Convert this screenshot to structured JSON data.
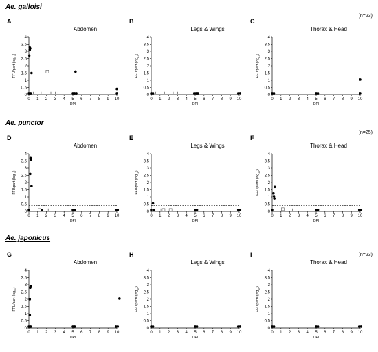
{
  "species": [
    {
      "name": "Ae. galloisi",
      "n": "(n=23)"
    },
    {
      "name": "Ae. punctor",
      "n": "(n=25)"
    },
    {
      "name": "Ae. japonicus",
      "n": "(n=23)"
    }
  ],
  "axes": {
    "xlabel": "DPI",
    "ylabel_parts": "FFU/parts (log",
    "ylabel_part": "FFU/part (log",
    "ylabel_sub": "10",
    "ylabel_close": ")",
    "xticks": [
      0,
      1,
      2,
      3,
      4,
      5,
      6,
      7,
      8,
      9,
      10
    ],
    "yticks": [
      "0",
      "0.5",
      "1",
      "1.5",
      "2",
      "2.5",
      "3",
      "3.5",
      "4"
    ]
  },
  "chart_data": [
    {
      "id": "A",
      "title": "Abdomen",
      "type": "scatter",
      "ylabel": "FFU/part (log10)",
      "xlabel": "DPI",
      "xlim": [
        0,
        10
      ],
      "ylim": [
        0,
        4
      ],
      "threshold": 0.4,
      "positive": [
        [
          0.1,
          3.3
        ],
        [
          0.15,
          3.2
        ],
        [
          0.1,
          3.1
        ],
        [
          0.05,
          2.7
        ],
        [
          0.3,
          1.5
        ],
        [
          5.3,
          1.6
        ],
        [
          10,
          0.4
        ]
      ],
      "negative": [
        [
          0,
          0.1
        ],
        [
          0.2,
          0.1
        ],
        [
          5,
          0.1
        ],
        [
          5.2,
          0.1
        ],
        [
          5.4,
          0.1
        ],
        [
          10,
          0.1
        ]
      ],
      "nd": [
        [
          2.1,
          1.6
        ]
      ],
      "ticks": [
        0.5,
        0.8,
        1.4,
        1.6,
        2.5,
        3,
        3.3
      ]
    },
    {
      "id": "B",
      "title": "Legs & Wings",
      "type": "scatter",
      "ylabel": "FFU/part (log10)",
      "xlabel": "DPI",
      "xlim": [
        0,
        10
      ],
      "ylim": [
        0,
        4
      ],
      "threshold": 0.4,
      "positive": [],
      "negative": [
        [
          0,
          0.1
        ],
        [
          0.2,
          0.1
        ],
        [
          4.9,
          0.1
        ],
        [
          5.1,
          0.1
        ],
        [
          5.3,
          0.1
        ],
        [
          9.9,
          0.1
        ],
        [
          10.1,
          0.1
        ]
      ],
      "nd": [],
      "ticks": [
        0.5,
        0.9,
        1.5,
        2.5,
        3
      ]
    },
    {
      "id": "C",
      "title": "Thorax & Head",
      "type": "scatter",
      "ylabel": "FFU/part (log10)",
      "xlabel": "DPI",
      "xlim": [
        0,
        10
      ],
      "ylim": [
        0,
        4
      ],
      "threshold": 0.4,
      "positive": [
        [
          10,
          1.05
        ]
      ],
      "negative": [
        [
          0,
          0.1
        ],
        [
          0.2,
          0.1
        ],
        [
          5,
          0.1
        ],
        [
          5.2,
          0.1
        ],
        [
          10,
          0.1
        ]
      ],
      "nd": [],
      "ticks": []
    },
    {
      "id": "D",
      "title": "Abdomen",
      "type": "scatter",
      "ylabel": "FFU/part (log10)",
      "xlabel": "DPI",
      "xlim": [
        0,
        10
      ],
      "ylim": [
        0,
        4
      ],
      "threshold": 0.4,
      "positive": [
        [
          0.2,
          3.7
        ],
        [
          0.25,
          3.6
        ],
        [
          0.15,
          2.6
        ],
        [
          0.3,
          1.75
        ]
      ],
      "negative": [
        [
          0,
          0.1
        ],
        [
          1.5,
          0.1
        ],
        [
          5,
          0.1
        ],
        [
          5.2,
          0.1
        ],
        [
          9.9,
          0.1
        ],
        [
          10.1,
          0.1
        ]
      ],
      "nd": [
        [
          1.2,
          0.1
        ]
      ],
      "ticks": [
        2.2
      ]
    },
    {
      "id": "E",
      "title": "Legs & Wings",
      "type": "scatter",
      "ylabel": "FFU/part (log10)",
      "xlabel": "DPI",
      "xlim": [
        0,
        10
      ],
      "ylim": [
        0,
        4
      ],
      "threshold": 0.4,
      "positive": [
        [
          0.2,
          0.55
        ]
      ],
      "negative": [
        [
          0,
          0.1
        ],
        [
          0.3,
          0.1
        ],
        [
          5,
          0.1
        ],
        [
          5.2,
          0.1
        ],
        [
          9.9,
          0.1
        ],
        [
          10.1,
          0.1
        ]
      ],
      "nd": [
        [
          1.4,
          0.1
        ],
        [
          2.2,
          0.1
        ]
      ],
      "ticks": [
        1.1
      ]
    },
    {
      "id": "F",
      "title": "Thorax & Head",
      "type": "scatter",
      "ylabel": "FFU/parts (log10)",
      "xlabel": "DPI",
      "xlim": [
        0,
        10
      ],
      "ylim": [
        0,
        4
      ],
      "threshold": 0.4,
      "positive": [
        [
          0.3,
          1.7
        ],
        [
          0.15,
          1.25
        ],
        [
          0.2,
          1.05
        ],
        [
          0.25,
          0.9
        ]
      ],
      "negative": [
        [
          0,
          0.1
        ],
        [
          5,
          0.1
        ],
        [
          5.2,
          0.1
        ],
        [
          9.9,
          0.1
        ],
        [
          10.1,
          0.1
        ]
      ],
      "nd": [
        [
          1.2,
          0.15
        ]
      ],
      "ticks": [
        2.3
      ]
    },
    {
      "id": "G",
      "title": "Abdomen",
      "type": "scatter",
      "ylabel": "FFU/part (log10)",
      "xlabel": "DPI",
      "xlim": [
        0,
        10
      ],
      "ylim": [
        0,
        4
      ],
      "threshold": 0.4,
      "positive": [
        [
          0.2,
          2.9
        ],
        [
          0.15,
          2.8
        ],
        [
          0.1,
          2.0
        ],
        [
          0.1,
          0.9
        ],
        [
          10.3,
          2.05
        ]
      ],
      "negative": [
        [
          0,
          0.1
        ],
        [
          0.2,
          0.1
        ],
        [
          5,
          0.1
        ],
        [
          5.2,
          0.1
        ],
        [
          9.9,
          0.1
        ],
        [
          10.1,
          0.1
        ]
      ],
      "nd": [],
      "ticks": []
    },
    {
      "id": "H",
      "title": "Legs & Wings",
      "type": "scatter",
      "ylabel": "FFU/parts (log10)",
      "xlabel": "DPI",
      "xlim": [
        0,
        10
      ],
      "ylim": [
        0,
        4
      ],
      "threshold": 0.4,
      "positive": [],
      "negative": [
        [
          0,
          0.1
        ],
        [
          0.2,
          0.1
        ],
        [
          5,
          0.1
        ],
        [
          5.2,
          0.1
        ],
        [
          9.9,
          0.1
        ],
        [
          10.1,
          0.1
        ]
      ],
      "nd": [],
      "ticks": []
    },
    {
      "id": "I",
      "title": "Thorax & Head",
      "type": "scatter",
      "ylabel": "FFU/parts (log10)",
      "xlabel": "DPI",
      "xlim": [
        0,
        10
      ],
      "ylim": [
        0,
        4
      ],
      "threshold": 0.4,
      "positive": [],
      "negative": [
        [
          0,
          0.1
        ],
        [
          0.2,
          0.1
        ],
        [
          5,
          0.1
        ],
        [
          5.2,
          0.1
        ],
        [
          9.9,
          0.1
        ],
        [
          10.1,
          0.1
        ]
      ],
      "nd": [],
      "ticks": []
    }
  ]
}
